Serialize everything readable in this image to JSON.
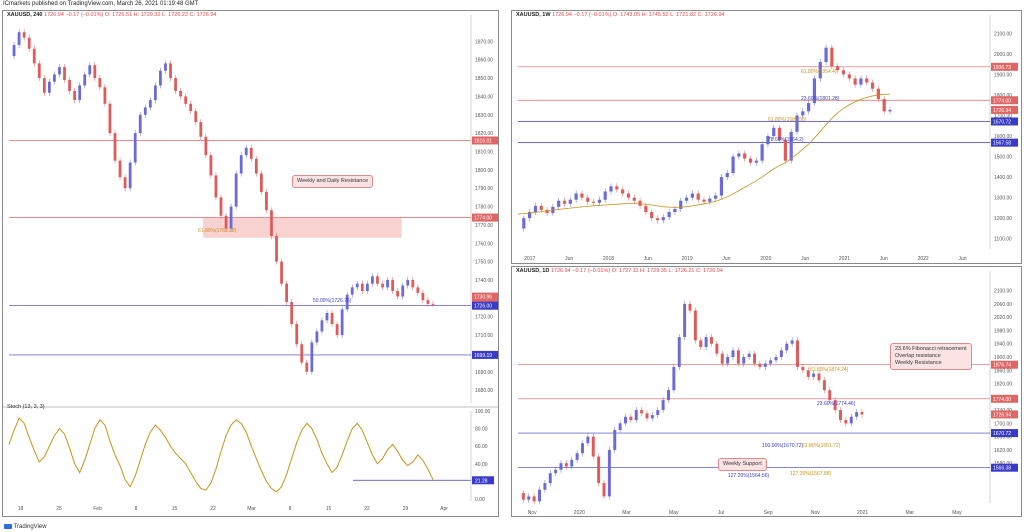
{
  "header": {
    "text": "ICmarkets published on TradingView.com, March 26, 2021 01:19:48 GMT"
  },
  "footer": {
    "brand": "TradingView"
  },
  "colors": {
    "up": "#6a6ad8",
    "down": "#e05a5a",
    "stoch": "#c9921a",
    "res": "#e06666",
    "sup": "#3a3ac8"
  },
  "panels": [
    {
      "id": "4h",
      "title": "XAUUSD, 240",
      "ohlc": "1726.94  −0.17 (−0.01%)  O: 1726.51  H: 1729.32  L: 1726.22  C: 1726.94",
      "note": "Weekly and Daily Resistance",
      "fib_labels": [
        "61.80%(1762.38)",
        "50.00%(1726.75)"
      ],
      "price_tags": [
        {
          "label": "1816.01",
          "kind": "res"
        },
        {
          "label": "1774.00",
          "kind": "res"
        },
        {
          "label": "1730.96",
          "kind": "res"
        },
        {
          "label": "1726.94",
          "kind": "res"
        },
        {
          "label": "1726.00",
          "kind": "sup"
        },
        {
          "label": "1699.19",
          "kind": "sup"
        }
      ],
      "osc_label": "Stoch (13, 3, 3)",
      "osc_tag": "21.28",
      "chart_data": {
        "type": "line",
        "title": "XAUUSD, 240",
        "x_ticks": [
          "18",
          "25",
          "Feb",
          "8",
          "15",
          "22",
          "Mar",
          "8",
          "15",
          "22",
          "29",
          "Apr"
        ],
        "y_ticks": [
          1870,
          1860,
          1850,
          1840,
          1830,
          1820,
          1810,
          1800,
          1790,
          1780,
          1770,
          1760,
          1750,
          1740,
          1730,
          1720,
          1710,
          1700,
          1690,
          1680
        ],
        "ylim": [
          1673,
          1880
        ],
        "osc_ticks": [
          100,
          80,
          60,
          40,
          20,
          0
        ],
        "levels": [
          1816.01,
          1774.0,
          1726.0,
          1699.19
        ],
        "zone": [
          1763,
          1774
        ],
        "series": [
          {
            "values": [
              1862,
              1868,
              1875,
              1872,
              1866,
              1858,
              1850,
              1842,
              1848,
              1852,
              1856,
              1849,
              1843,
              1838,
              1846,
              1852,
              1857,
              1850,
              1845,
              1836,
              1820,
              1805,
              1796,
              1790,
              1804,
              1820,
              1830,
              1834,
              1838,
              1846,
              1854,
              1858,
              1850,
              1843,
              1840,
              1836,
              1832,
              1826,
              1818,
              1808,
              1797,
              1785,
              1775,
              1768,
              1780,
              1798,
              1808,
              1812,
              1806,
              1798,
              1788,
              1778,
              1764,
              1750,
              1738,
              1728,
              1716,
              1705,
              1695,
              1690,
              1706,
              1712,
              1718,
              1722,
              1716,
              1710,
              1724,
              1732,
              1736,
              1738,
              1734,
              1738,
              1742,
              1738,
              1736,
              1740,
              1734,
              1731,
              1737,
              1740,
              1736,
              1733,
              1729,
              1727,
              1726.94
            ]
          }
        ],
        "osc_values": [
          62,
          78,
          92,
          86,
          70,
          55,
          42,
          48,
          60,
          72,
          80,
          74,
          58,
          40,
          30,
          44,
          62,
          80,
          90,
          84,
          66,
          50,
          38,
          22,
          14,
          26,
          44,
          62,
          76,
          84,
          78,
          70,
          60,
          52,
          46,
          40,
          30,
          20,
          12,
          10,
          18,
          34,
          54,
          72,
          84,
          90,
          86,
          76,
          60,
          46,
          32,
          20,
          12,
          8,
          14,
          28,
          46,
          64,
          78,
          86,
          80,
          68,
          52,
          40,
          30,
          36,
          50,
          66,
          80,
          86,
          78,
          64,
          50,
          40,
          46,
          56,
          62,
          54,
          44,
          38,
          42,
          50,
          44,
          34,
          22
        ]
      }
    },
    {
      "id": "1w",
      "title": "XAUUSD, 1W",
      "ohlc": "1726.94  −0.17 (−0.01%)  O: 1743.05  H: 1745.52  L: 1721.82  C: 1726.94",
      "fib_labels": [
        "61.80%(1954.4)",
        "23.60%(1801.28)",
        "61.80%(1689.58)",
        "78.60%(1564.2)"
      ],
      "price_tags": [
        {
          "label": "1936.73",
          "kind": "res"
        },
        {
          "label": "1774.00",
          "kind": "res"
        },
        {
          "label": "1726.94",
          "kind": "res"
        },
        {
          "label": "1670.72",
          "kind": "sup"
        },
        {
          "label": "1567.58",
          "kind": "sup"
        }
      ],
      "chart_data": {
        "type": "line",
        "title": "XAUUSD, 1W",
        "x_ticks": [
          "2017",
          "Jun",
          "2018",
          "Jun",
          "2019",
          "Jun",
          "2020",
          "Jun",
          "2021",
          "Jun",
          "2022",
          "Jun"
        ],
        "y_ticks": [
          2100,
          2000,
          1900,
          1800,
          1700,
          1600,
          1500,
          1400,
          1300,
          1200,
          1100
        ],
        "ylim": [
          1050,
          2150
        ],
        "levels": [
          1936.73,
          1774.0,
          1670.72,
          1567.58
        ],
        "series": [
          {
            "values": [
              1150,
              1200,
              1230,
              1260,
              1240,
              1225,
              1255,
              1285,
              1270,
              1290,
              1320,
              1300,
              1280,
              1275,
              1290,
              1330,
              1355,
              1340,
              1320,
              1300,
              1285,
              1260,
              1230,
              1200,
              1190,
              1205,
              1230,
              1245,
              1285,
              1300,
              1320,
              1290,
              1280,
              1295,
              1310,
              1400,
              1420,
              1500,
              1515,
              1490,
              1470,
              1480,
              1560,
              1600,
              1640,
              1580,
              1480,
              1620,
              1700,
              1720,
              1760,
              1880,
              1960,
              2030,
              1940,
              1920,
              1900,
              1880,
              1850,
              1880,
              1860,
              1830,
              1780,
              1720,
              1726.94
            ]
          },
          {
            "values": [
              1220,
              1222,
              1225,
              1228,
              1232,
              1236,
              1240,
              1243,
              1246,
              1249,
              1252,
              1255,
              1258,
              1260,
              1262,
              1264,
              1266,
              1268,
              1270,
              1271,
              1271,
              1270,
              1268,
              1264,
              1260,
              1256,
              1254,
              1253,
              1254,
              1256,
              1260,
              1265,
              1270,
              1275,
              1282,
              1292,
              1304,
              1318,
              1334,
              1350,
              1366,
              1382,
              1400,
              1420,
              1440,
              1456,
              1470,
              1490,
              1512,
              1536,
              1560,
              1590,
              1622,
              1655,
              1686,
              1712,
              1734,
              1752,
              1766,
              1778,
              1788,
              1795,
              1800,
              1803,
              1804
            ]
          }
        ]
      }
    },
    {
      "id": "1d",
      "title": "XAUUSD, 1D",
      "ohlc": "1726.94  −0.17 (−0.01%)  O: 1727.11  H: 1729.35  L: 1726.21  C: 1726.94",
      "note_top": "23.6% Fibonacci retracement\nOverlap resistance\nWeekly Resistance",
      "note_bottom": "Weekly Support",
      "fib_labels": [
        "61.80%(1874.24)",
        "23.60%(1774.46)",
        "100.00%(1670.72)",
        "61.80%(1651.72)",
        "127.20%(1564.56)",
        "127.20%(1567.88)"
      ],
      "price_tags": [
        {
          "label": "1876.74",
          "kind": "res"
        },
        {
          "label": "1774.00",
          "kind": "res"
        },
        {
          "label": "1726.94",
          "kind": "res"
        },
        {
          "label": "1670.72",
          "kind": "sup"
        },
        {
          "label": "1566.38",
          "kind": "sup"
        }
      ],
      "chart_data": {
        "type": "line",
        "title": "XAUUSD, 1D",
        "x_ticks": [
          "Nov",
          "2020",
          "Mar",
          "May",
          "Jul",
          "Sep",
          "Nov",
          "2021",
          "Mar",
          "May"
        ],
        "y_ticks": [
          2100,
          2060,
          2020,
          1980,
          1940,
          1900,
          1860,
          1820,
          1780,
          1740,
          1700,
          1660,
          1620,
          1580
        ],
        "ylim": [
          1460,
          2135
        ],
        "levels": [
          1876.74,
          1774.0,
          1670.72,
          1566.38
        ],
        "series": [
          {
            "values": [
              1490,
              1470,
              1480,
              1465,
              1500,
              1520,
              1550,
              1560,
              1580,
              1570,
              1590,
              1610,
              1640,
              1660,
              1600,
              1520,
              1480,
              1620,
              1680,
              1700,
              1720,
              1710,
              1740,
              1730,
              1715,
              1725,
              1740,
              1770,
              1800,
              1870,
              1960,
              2060,
              2040,
              1950,
              1930,
              1960,
              1940,
              1910,
              1880,
              1900,
              1920,
              1880,
              1900,
              1910,
              1880,
              1870,
              1880,
              1890,
              1900,
              1920,
              1940,
              1950,
              1870,
              1860,
              1840,
              1850,
              1830,
              1800,
              1770,
              1740,
              1710,
              1700,
              1720,
              1734,
              1726.94
            ]
          }
        ]
      }
    }
  ]
}
